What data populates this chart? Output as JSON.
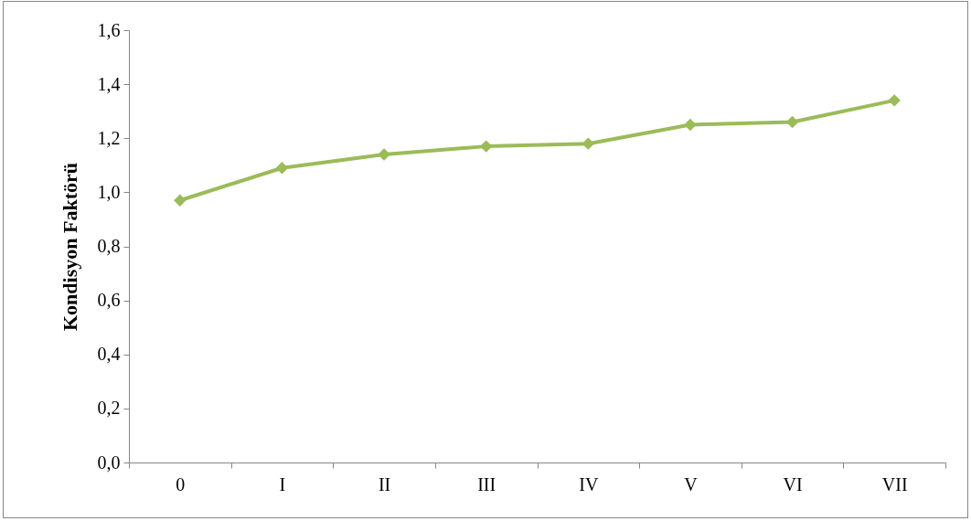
{
  "chart_data": {
    "type": "line",
    "ylabel": "Kondisyon Faktörü",
    "categories": [
      "0",
      "I",
      "II",
      "III",
      "IV",
      "V",
      "VI",
      "VII"
    ],
    "series": [
      {
        "color": "#9bbb59",
        "values": [
          0.97,
          1.09,
          1.14,
          1.17,
          1.18,
          1.25,
          1.26,
          1.34
        ]
      }
    ],
    "ylim": [
      0,
      1.6
    ],
    "yticks": [
      {
        "value": 0,
        "label": "0,0"
      },
      {
        "value": 0.2,
        "label": "0,2"
      },
      {
        "value": 0.4,
        "label": "0,4"
      },
      {
        "value": 0.6,
        "label": "0,6"
      },
      {
        "value": 0.8,
        "label": "0,8"
      },
      {
        "value": 1.0,
        "label": "1,0"
      },
      {
        "value": 1.2,
        "label": "1,2"
      },
      {
        "value": 1.4,
        "label": "1,4"
      },
      {
        "value": 1.6,
        "label": "1,6"
      }
    ],
    "grid": false,
    "legend": false,
    "marker": "diamond",
    "line_style": "solid"
  }
}
